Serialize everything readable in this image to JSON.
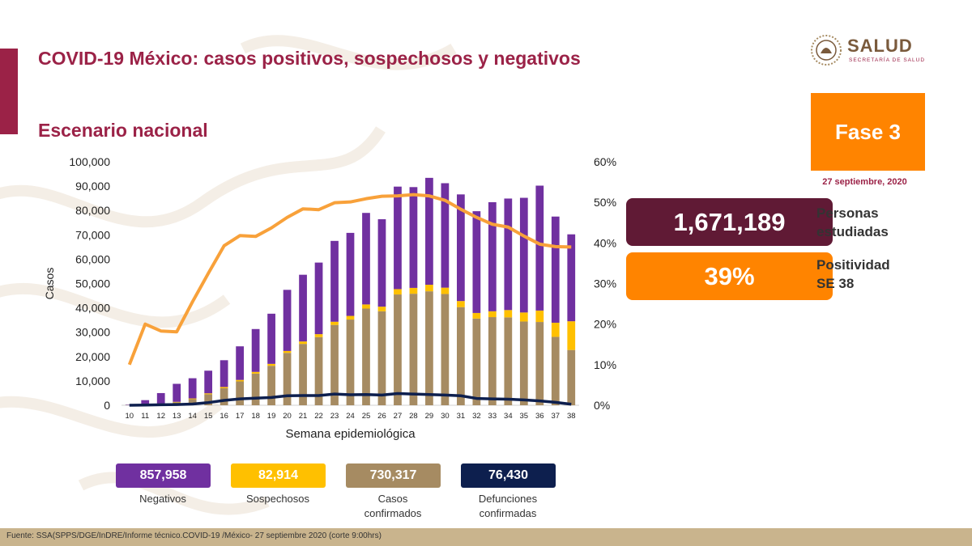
{
  "header": {
    "title": "COVID-19 México: casos positivos, sospechosos y negativos",
    "subtitle": "Escenario nacional"
  },
  "logo": {
    "name": "SALUD",
    "sub": "SECRETARÍA DE SALUD"
  },
  "phase": {
    "label": "Fase 3",
    "date": "27 septiembre, 2020"
  },
  "stats": {
    "studied_value": "1,671,189",
    "studied_label_1": "Personas",
    "studied_label_2": "estudiadas",
    "positivity_value": "39%",
    "positivity_label_1": "Positividad",
    "positivity_label_2": "SE 38"
  },
  "legend": [
    {
      "value": "857,958",
      "label_1": "Negativos",
      "label_2": "",
      "color": "#7030a0",
      "text_color": "#ffffff"
    },
    {
      "value": "82,914",
      "label_1": "Sospechosos",
      "label_2": "",
      "color": "#ffc000",
      "text_color": "#ffffff"
    },
    {
      "value": "730,317",
      "label_1": "Casos",
      "label_2": "confirmados",
      "color": "#a68b62",
      "text_color": "#ffffff"
    },
    {
      "value": "76,430",
      "label_1": "Defunciones",
      "label_2": "confirmadas",
      "color": "#0d1f4e",
      "text_color": "#ffffff"
    }
  ],
  "footer": {
    "source": "Fuente: SSA(SPPS/DGE/InDRE/Informe técnico.COVID-19 /México- 27 septiembre 2020 (corte 9:00hrs)"
  },
  "colors": {
    "brand": "#9b2247",
    "orange": "#ff8400",
    "negativos": "#7030a0",
    "sospechosos": "#ffc000",
    "confirmados": "#a68b62",
    "defunciones": "#0d1f4e",
    "positividad": "#f8a13a"
  },
  "chart_data": {
    "type": "bar",
    "stacked": true,
    "xlabel": "Semana epidemiológica",
    "ylabel": "Casos",
    "ylim": [
      0,
      100000
    ],
    "y2lim": [
      0,
      60
    ],
    "yticks": [
      "0",
      "10,000",
      "20,000",
      "30,000",
      "40,000",
      "50,000",
      "60,000",
      "70,000",
      "80,000",
      "90,000",
      "100,000"
    ],
    "y2ticks": [
      "0%",
      "10%",
      "20%",
      "30%",
      "40%",
      "50%",
      "60%"
    ],
    "categories": [
      "10",
      "11",
      "12",
      "13",
      "14",
      "15",
      "16",
      "17",
      "18",
      "19",
      "20",
      "21",
      "22",
      "23",
      "24",
      "25",
      "26",
      "27",
      "28",
      "29",
      "30",
      "31",
      "32",
      "33",
      "34",
      "35",
      "36",
      "37",
      "38"
    ],
    "series": [
      {
        "name": "Casos confirmados",
        "values": [
          100,
          400,
          600,
          1200,
          2500,
          4500,
          7000,
          9800,
          13000,
          16200,
          21500,
          25200,
          28000,
          33000,
          35200,
          39700,
          38600,
          45500,
          45800,
          46800,
          45700,
          40300,
          35600,
          36200,
          36100,
          34400,
          34200,
          28100,
          22700
        ]
      },
      {
        "name": "Sospechosos",
        "values": [
          0,
          50,
          100,
          200,
          300,
          400,
          500,
          600,
          700,
          800,
          800,
          1000,
          1200,
          1300,
          1500,
          1700,
          1900,
          2200,
          2400,
          2700,
          2600,
          2500,
          2300,
          2400,
          3000,
          3700,
          4700,
          5800,
          11800
        ]
      },
      {
        "name": "Negativos",
        "values": [
          150,
          1650,
          4300,
          7400,
          8300,
          9300,
          11000,
          13800,
          17600,
          20600,
          25100,
          27400,
          29400,
          33200,
          34100,
          37600,
          35900,
          42100,
          41400,
          43900,
          42900,
          43800,
          41800,
          44800,
          45800,
          47100,
          51300,
          43600,
          35700
        ]
      },
      {
        "name": "Defunciones",
        "type": "line",
        "values": [
          0,
          100,
          200,
          300,
          500,
          1100,
          2000,
          2600,
          2900,
          3200,
          3900,
          4000,
          4000,
          4600,
          4300,
          4400,
          4200,
          4800,
          4600,
          4400,
          4200,
          3900,
          2800,
          2600,
          2500,
          2200,
          1800,
          1200,
          400
        ]
      },
      {
        "name": "Positividad",
        "type": "line",
        "axis": "y2",
        "values": [
          10,
          20,
          18.3,
          18.1,
          25.5,
          32.5,
          39.3,
          41.8,
          41.6,
          43.7,
          46.3,
          48.4,
          48.2,
          49.9,
          50.1,
          50.9,
          51.5,
          51.6,
          51.9,
          51.6,
          50.5,
          48.3,
          46.3,
          44.6,
          43.9,
          41.7,
          39.7,
          39.1,
          39.0
        ]
      }
    ]
  }
}
